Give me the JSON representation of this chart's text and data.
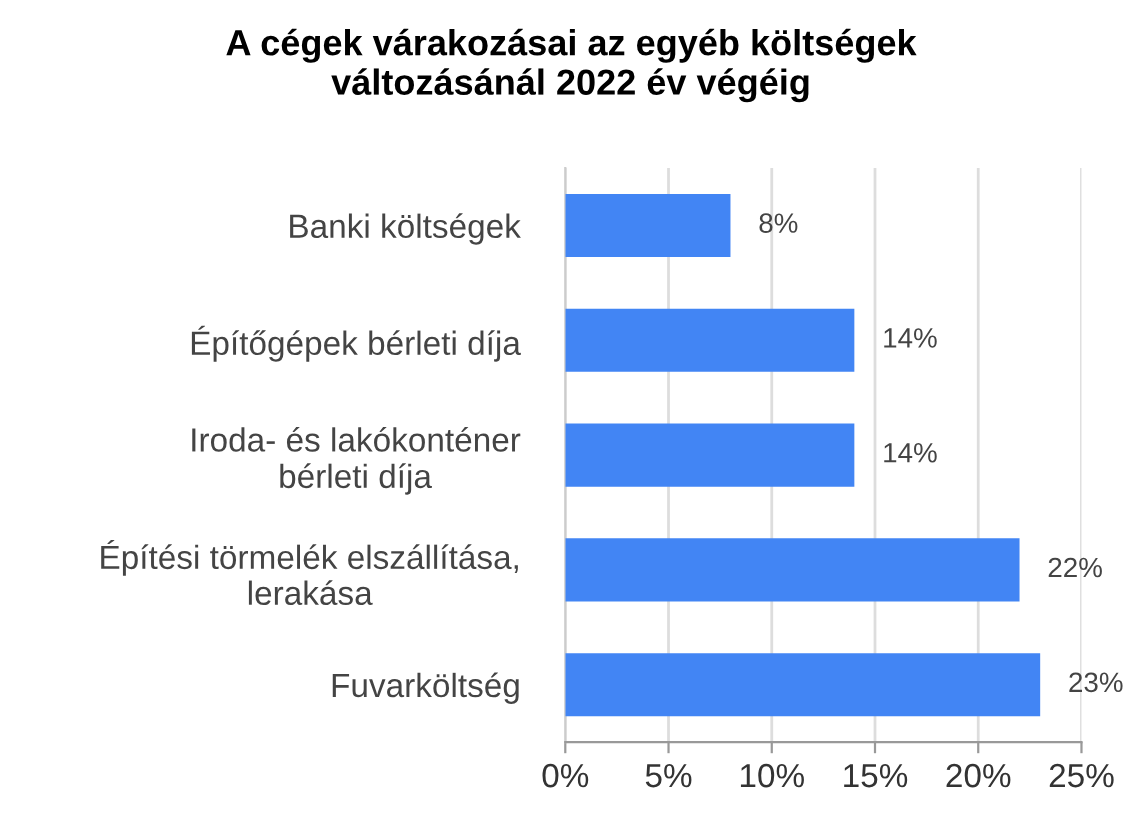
{
  "chart_data": {
    "type": "bar",
    "orientation": "horizontal",
    "title": "A cégek várakozásai az egyéb költségek\nváltozásánál 2022 év végéig",
    "categories": [
      "Banki költségek",
      "Építőgépek bérleti díja",
      "Iroda- és lakókonténer\nbérleti díja",
      "Építési törmelék elszállítása,\nlerakása",
      "Fuvarköltség"
    ],
    "values": [
      8,
      14,
      14,
      22,
      23
    ],
    "value_labels": [
      "8%",
      "14%",
      "14%",
      "22%",
      "23%"
    ],
    "color": "#4285f4",
    "xlim": [
      0,
      25
    ],
    "xticks": [
      {
        "value": 0,
        "label": "0%"
      },
      {
        "value": 5,
        "label": "5%"
      },
      {
        "value": 10,
        "label": "10%"
      },
      {
        "value": 15,
        "label": "15%"
      },
      {
        "value": 20,
        "label": "20%"
      },
      {
        "value": 25,
        "label": "25%"
      }
    ],
    "grid": "x",
    "legend": false
  }
}
